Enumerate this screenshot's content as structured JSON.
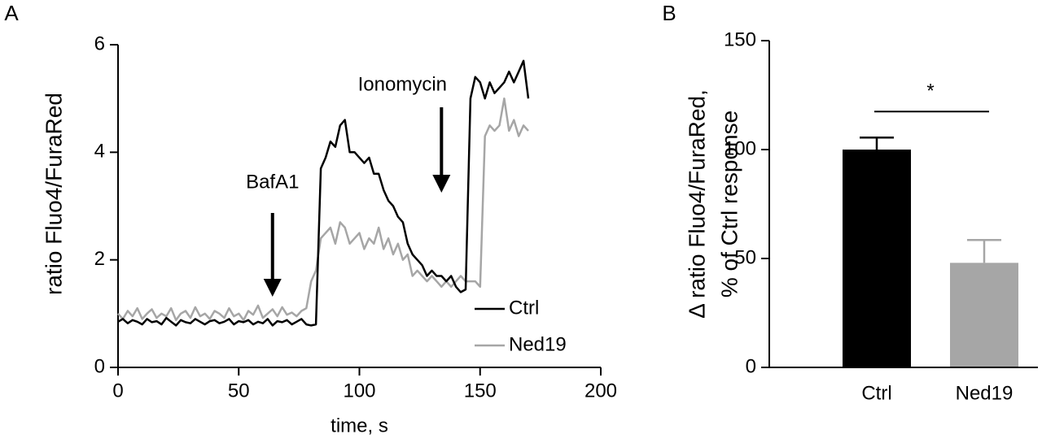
{
  "chart_data": [
    {
      "type": "line",
      "panel": "A",
      "x_label": "time, s",
      "y_label": "ratio Fluo4/FuraRed",
      "x": [
        0,
        2,
        4,
        6,
        8,
        10,
        12,
        14,
        16,
        18,
        20,
        22,
        24,
        26,
        28,
        30,
        32,
        34,
        36,
        38,
        40,
        42,
        44,
        46,
        48,
        50,
        52,
        54,
        56,
        58,
        60,
        62,
        64,
        66,
        68,
        70,
        72,
        74,
        76,
        78,
        80,
        82,
        84,
        86,
        88,
        90,
        92,
        94,
        96,
        98,
        100,
        102,
        104,
        106,
        108,
        110,
        112,
        114,
        116,
        118,
        120,
        122,
        124,
        126,
        128,
        130,
        132,
        134,
        136,
        138,
        140,
        142,
        144,
        146,
        148,
        150,
        152,
        154,
        156,
        158,
        160,
        162,
        164,
        166,
        168,
        170
      ],
      "series": [
        {
          "name": "Ctrl",
          "color": "#000000",
          "values": [
            0.85,
            0.9,
            0.82,
            0.88,
            0.85,
            0.8,
            0.9,
            0.84,
            0.86,
            0.8,
            0.92,
            0.85,
            0.78,
            0.88,
            0.84,
            0.82,
            0.9,
            0.85,
            0.8,
            0.86,
            0.88,
            0.82,
            0.85,
            0.9,
            0.8,
            0.86,
            0.84,
            0.88,
            0.8,
            0.85,
            0.82,
            0.9,
            0.78,
            0.86,
            0.84,
            0.88,
            0.8,
            0.85,
            0.9,
            0.8,
            0.78,
            0.8,
            3.7,
            3.9,
            4.2,
            4.1,
            4.5,
            4.6,
            4.0,
            4.0,
            3.9,
            3.8,
            3.9,
            3.6,
            3.6,
            3.3,
            3.1,
            3.0,
            2.8,
            2.7,
            2.3,
            2.1,
            2.0,
            1.9,
            1.7,
            1.8,
            1.7,
            1.7,
            1.6,
            1.7,
            1.5,
            1.4,
            1.45,
            5.0,
            5.4,
            5.3,
            5.0,
            5.3,
            5.1,
            5.2,
            5.3,
            5.5,
            5.3,
            5.5,
            5.7,
            5.0
          ]
        },
        {
          "name": "Ned19",
          "color": "#a6a6a6",
          "values": [
            1.0,
            0.9,
            1.05,
            0.95,
            1.1,
            0.9,
            1.0,
            1.08,
            0.92,
            1.0,
            0.95,
            1.1,
            0.88,
            1.0,
            1.05,
            0.92,
            1.12,
            0.95,
            1.0,
            0.9,
            1.05,
            1.0,
            0.92,
            1.1,
            0.95,
            1.0,
            0.88,
            1.05,
            0.98,
            1.15,
            0.92,
            1.0,
            1.08,
            0.95,
            1.12,
            0.98,
            1.02,
            0.95,
            1.05,
            1.1,
            1.6,
            1.8,
            2.4,
            2.5,
            2.6,
            2.3,
            2.7,
            2.6,
            2.3,
            2.4,
            2.5,
            2.2,
            2.4,
            2.3,
            2.6,
            2.2,
            2.4,
            2.1,
            2.3,
            2.0,
            2.1,
            1.7,
            1.8,
            1.7,
            1.6,
            1.7,
            1.6,
            1.5,
            1.6,
            1.5,
            1.6,
            1.7,
            1.6,
            1.6,
            1.6,
            1.5,
            4.3,
            4.5,
            4.4,
            4.5,
            5.0,
            4.4,
            4.6,
            4.3,
            4.5,
            4.4
          ]
        }
      ],
      "annotations": [
        {
          "text": "BafA1",
          "x": 64
        },
        {
          "text": "Ionomycin",
          "x": 134
        }
      ],
      "xlim": [
        0,
        200
      ],
      "xticks": [
        0,
        50,
        100,
        150,
        200
      ],
      "ylim": [
        0,
        6
      ],
      "yticks": [
        0,
        2,
        4,
        6
      ],
      "legend": "lower right"
    },
    {
      "type": "bar",
      "panel": "B",
      "y_label": [
        "Δ ratio Fluo4/FuraRed,",
        "% of Ctrl response"
      ],
      "categories": [
        "Ctrl",
        "Ned19"
      ],
      "values": [
        100,
        48
      ],
      "errors": [
        5.5,
        10.5
      ],
      "colors": [
        "#000000",
        "#a6a6a6"
      ],
      "significance": "*",
      "ylim": [
        0,
        150
      ],
      "yticks": [
        0,
        50,
        100,
        150
      ]
    }
  ]
}
